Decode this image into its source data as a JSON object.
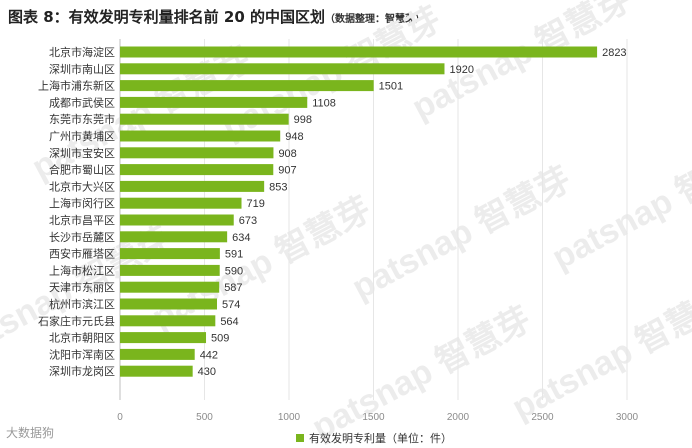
{
  "title": "图表 8：有效发明专利量排名前 20 的中国区划",
  "title_note": "（数据整理：智慧芽）",
  "watermark_text": "patsnap 智慧芽",
  "corner_logo": "大数据狗",
  "colors": {
    "bar": "#7ab51d",
    "axis": "#bfbfbf",
    "grid": "#e6e6e6",
    "label": "#333333",
    "tick": "#8c8c8c"
  },
  "chart_data": {
    "type": "bar",
    "orientation": "horizontal",
    "categories": [
      "北京市海淀区",
      "深圳市南山区",
      "上海市浦东新区",
      "成都市武侯区",
      "东莞市东莞市",
      "广州市黄埔区",
      "深圳市宝安区",
      "合肥市蜀山区",
      "北京市大兴区",
      "上海市闵行区",
      "北京市昌平区",
      "长沙市岳麓区",
      "西安市雁塔区",
      "上海市松江区",
      "天津市东丽区",
      "杭州市滨江区",
      "石家庄市元氏县",
      "北京市朝阳区",
      "沈阳市浑南区",
      "深圳市龙岗区"
    ],
    "series": [
      {
        "name": "有效发明专利量（单位：件）",
        "values": [
          2823,
          1920,
          1501,
          1108,
          998,
          948,
          908,
          907,
          853,
          719,
          673,
          634,
          591,
          590,
          587,
          574,
          564,
          509,
          442,
          430
        ]
      }
    ],
    "xlim": [
      0,
      3000
    ],
    "xticks": [
      0,
      500,
      1000,
      1500,
      2000,
      2500,
      3000
    ],
    "grid": true,
    "legend_position": "bottom-center",
    "data_labels": true
  }
}
